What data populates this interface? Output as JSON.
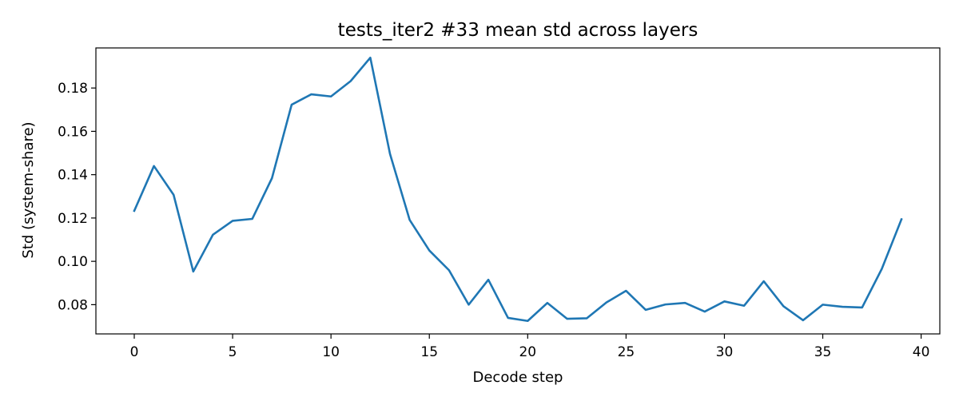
{
  "chart_data": {
    "type": "line",
    "title": "tests_iter2 #33 mean std across layers",
    "xlabel": "Decode step",
    "ylabel": "Std (system-share)",
    "xlim": [
      -1.95,
      40.95
    ],
    "ylim": [
      0.0665,
      0.1985
    ],
    "x_ticks": [
      0,
      5,
      10,
      15,
      20,
      25,
      30,
      35,
      40
    ],
    "y_ticks": [
      0.08,
      0.1,
      0.12,
      0.14,
      0.16,
      0.18
    ],
    "grid": false,
    "legend": "none",
    "series": [
      {
        "color": "#1f77b4",
        "x": [
          0,
          1,
          2,
          3,
          4,
          5,
          6,
          7,
          8,
          9,
          10,
          11,
          12,
          13,
          14,
          15,
          16,
          17,
          18,
          19,
          20,
          21,
          22,
          23,
          24,
          25,
          26,
          27,
          28,
          29,
          30,
          31,
          32,
          33,
          34,
          35,
          36,
          37,
          38,
          39
        ],
        "y": [
          0.1233,
          0.144,
          0.1307,
          0.0953,
          0.1123,
          0.1187,
          0.1196,
          0.1384,
          0.1723,
          0.1771,
          0.1761,
          0.1832,
          0.194,
          0.1496,
          0.1191,
          0.105,
          0.0959,
          0.08,
          0.0915,
          0.0739,
          0.0725,
          0.0808,
          0.0735,
          0.0737,
          0.081,
          0.0864,
          0.0776,
          0.0801,
          0.0808,
          0.0768,
          0.0815,
          0.0795,
          0.0908,
          0.0793,
          0.0728,
          0.08,
          0.079,
          0.0787,
          0.0965,
          0.1194
        ]
      }
    ]
  }
}
